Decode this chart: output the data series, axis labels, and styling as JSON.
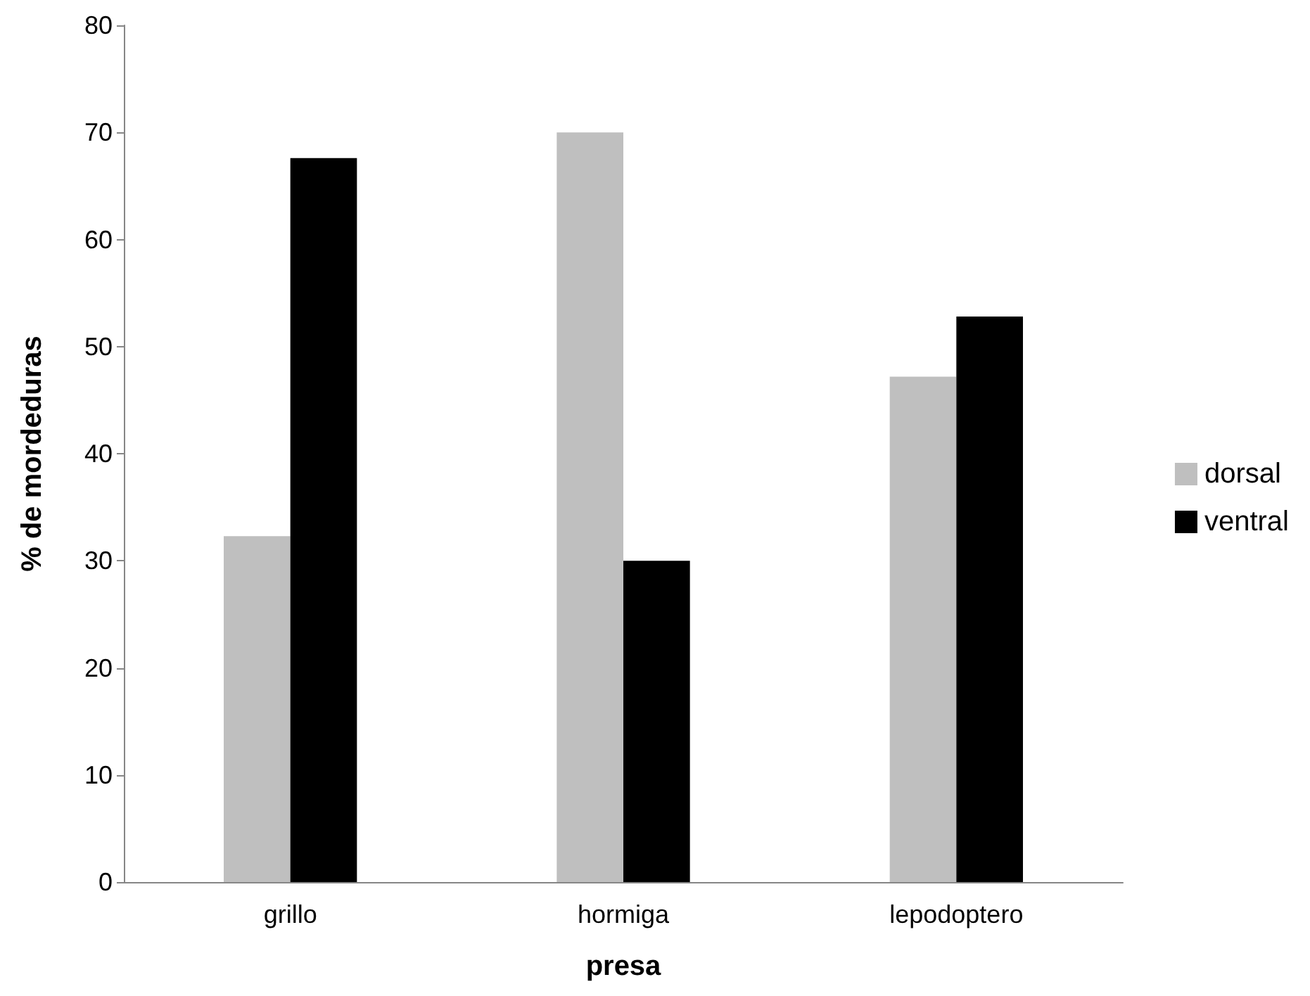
{
  "chart_data": {
    "type": "bar",
    "xlabel": "presa",
    "ylabel": "% de mordeduras",
    "categories": [
      "grillo",
      "hormiga",
      "lepodoptero"
    ],
    "series": [
      {
        "name": "dorsal",
        "color": "#bfbfbf",
        "values": [
          32.3,
          70,
          47.2
        ]
      },
      {
        "name": "ventral",
        "color": "#000000",
        "values": [
          67.6,
          30,
          52.8
        ]
      }
    ],
    "ylim": [
      0,
      80
    ],
    "yticks": [
      0,
      10,
      20,
      30,
      40,
      50,
      60,
      70,
      80
    ],
    "grid": false,
    "legend": "right"
  }
}
